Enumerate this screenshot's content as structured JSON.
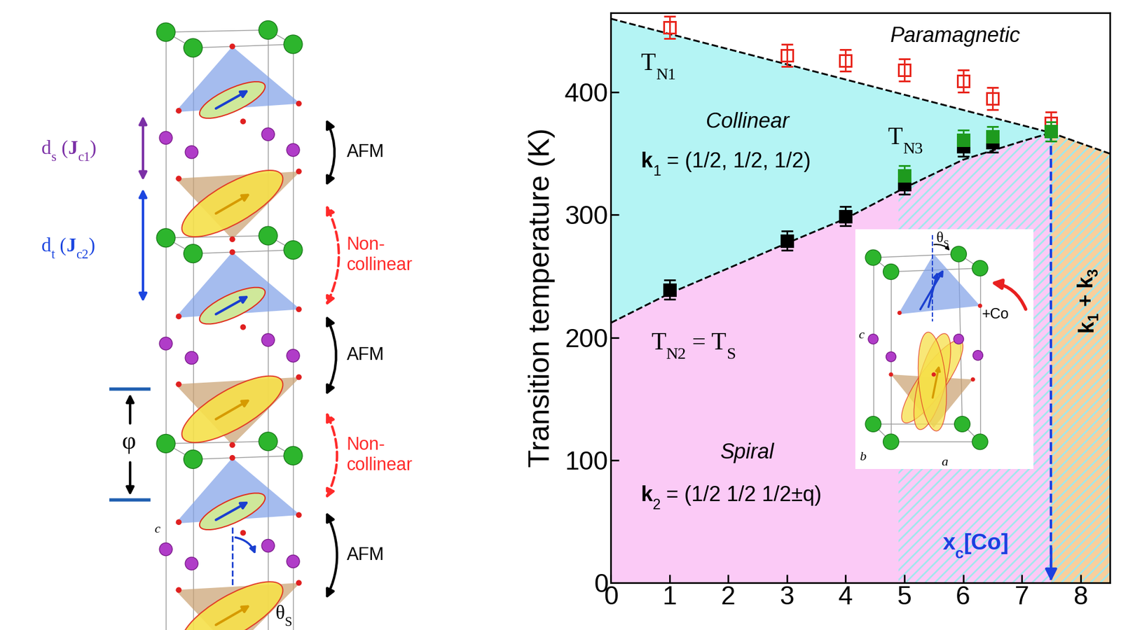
{
  "chart_data": {
    "type": "scatter",
    "ylabel": "Transition temperature (K)",
    "xlim": [
      0,
      8.5
    ],
    "xticks": [
      0,
      1,
      2,
      3,
      4,
      5,
      6,
      7,
      8
    ],
    "ylim": [
      0,
      465
    ],
    "yticks": [
      0,
      100,
      200,
      300,
      400
    ],
    "series": [
      {
        "x": [
          1,
          3,
          4,
          5,
          6,
          6.5,
          7.5
        ],
        "values": [
          453,
          430,
          426,
          418,
          409,
          395,
          375
        ],
        "errors": [
          9,
          9,
          9,
          9,
          9,
          9,
          9
        ],
        "color": "#e8251c",
        "marker": "open_square"
      },
      {
        "x": [
          1,
          3,
          4,
          5,
          6,
          6.5
        ],
        "values": [
          239,
          279,
          299,
          325,
          356,
          359
        ],
        "errors": [
          8,
          8,
          8,
          8,
          8,
          8
        ],
        "color": "#000000",
        "marker": "square"
      },
      {
        "x": [
          5,
          6,
          6.5,
          7.5
        ],
        "values": [
          332,
          361,
          364,
          368
        ],
        "errors": [
          8,
          8,
          8,
          8
        ],
        "color": "#1e9a1e",
        "marker": "square"
      }
    ],
    "boundaries": [
      {
        "x": [
          0,
          7.5,
          8.5
        ],
        "values": [
          460,
          367,
          350
        ],
        "color": "#000000",
        "line_style": "dashed"
      },
      {
        "x": [
          0,
          1,
          3,
          4,
          5,
          6,
          7,
          7.5
        ],
        "values": [
          212,
          236,
          277,
          297,
          322,
          345,
          360,
          367
        ],
        "color": "#000000",
        "line_style": "dashed"
      }
    ],
    "regions": [
      {
        "x": [
          0,
          7.5
        ],
        "between": [
          1,
          0
        ],
        "color": "#b4f4f4"
      },
      {
        "x": [
          0,
          7.5
        ],
        "between": [
          null,
          1
        ],
        "color": "#fbcaf6"
      },
      {
        "x": [
          4.9,
          7.5
        ],
        "between": [
          null,
          1
        ],
        "color": "#fbcaf6",
        "hatch_color": "#9fe8ec"
      },
      {
        "x": [
          7.5,
          8.5
        ],
        "between": [
          null,
          0
        ],
        "color": "#f8cf9c",
        "hatch_color": "#9fe8ec"
      }
    ],
    "critical": {
      "x": 7.5,
      "color": "#1c3fe0",
      "label": [
        "x",
        {
          "sub": "c"
        },
        "[Co]"
      ]
    },
    "annotations": [
      {
        "text": [
          "Paramagnetic"
        ]
      },
      {
        "text": [
          "T",
          {
            "sub": "N1"
          }
        ]
      },
      {
        "text": [
          "Collinear"
        ]
      },
      {
        "text": [
          "k",
          {
            "sub": "1"
          },
          " = (1/2, 1/2, 1/2)"
        ]
      },
      {
        "text": [
          "T",
          {
            "sub": "N3"
          }
        ]
      },
      {
        "text": [
          "T",
          {
            "sub": "N2"
          },
          " = T",
          {
            "sub": "S"
          }
        ]
      },
      {
        "text": [
          "Spiral"
        ]
      },
      {
        "text": [
          "k",
          {
            "sub": "2"
          },
          " = (1/2 1/2 1/2±q)"
        ]
      },
      {
        "text": [
          "k",
          {
            "sub": "1"
          },
          " + k",
          {
            "sub": "3"
          }
        ]
      }
    ]
  },
  "inset_diagram": {
    "tilt_label": [
      "θ",
      {
        "sub": "S"
      }
    ],
    "doping_label": "+Co",
    "axis_labels": [
      "c",
      "b",
      "a"
    ]
  },
  "structure_diagram": {
    "spacing_labels": [
      [
        "d",
        {
          "sub": "s"
        },
        " (",
        "J",
        {
          "sub": "c1"
        },
        ")"
      ],
      [
        "d",
        {
          "sub": "t"
        },
        " (",
        "J",
        {
          "sub": "c2"
        },
        ")"
      ]
    ],
    "coupling_labels": [
      "AFM",
      "Non-\ncollinear",
      "AFM",
      "Non-\ncollinear",
      "AFM"
    ],
    "phase_label": "φ",
    "tilt_label": [
      "θ",
      {
        "sub": "S"
      }
    ],
    "axis_label": "c"
  }
}
